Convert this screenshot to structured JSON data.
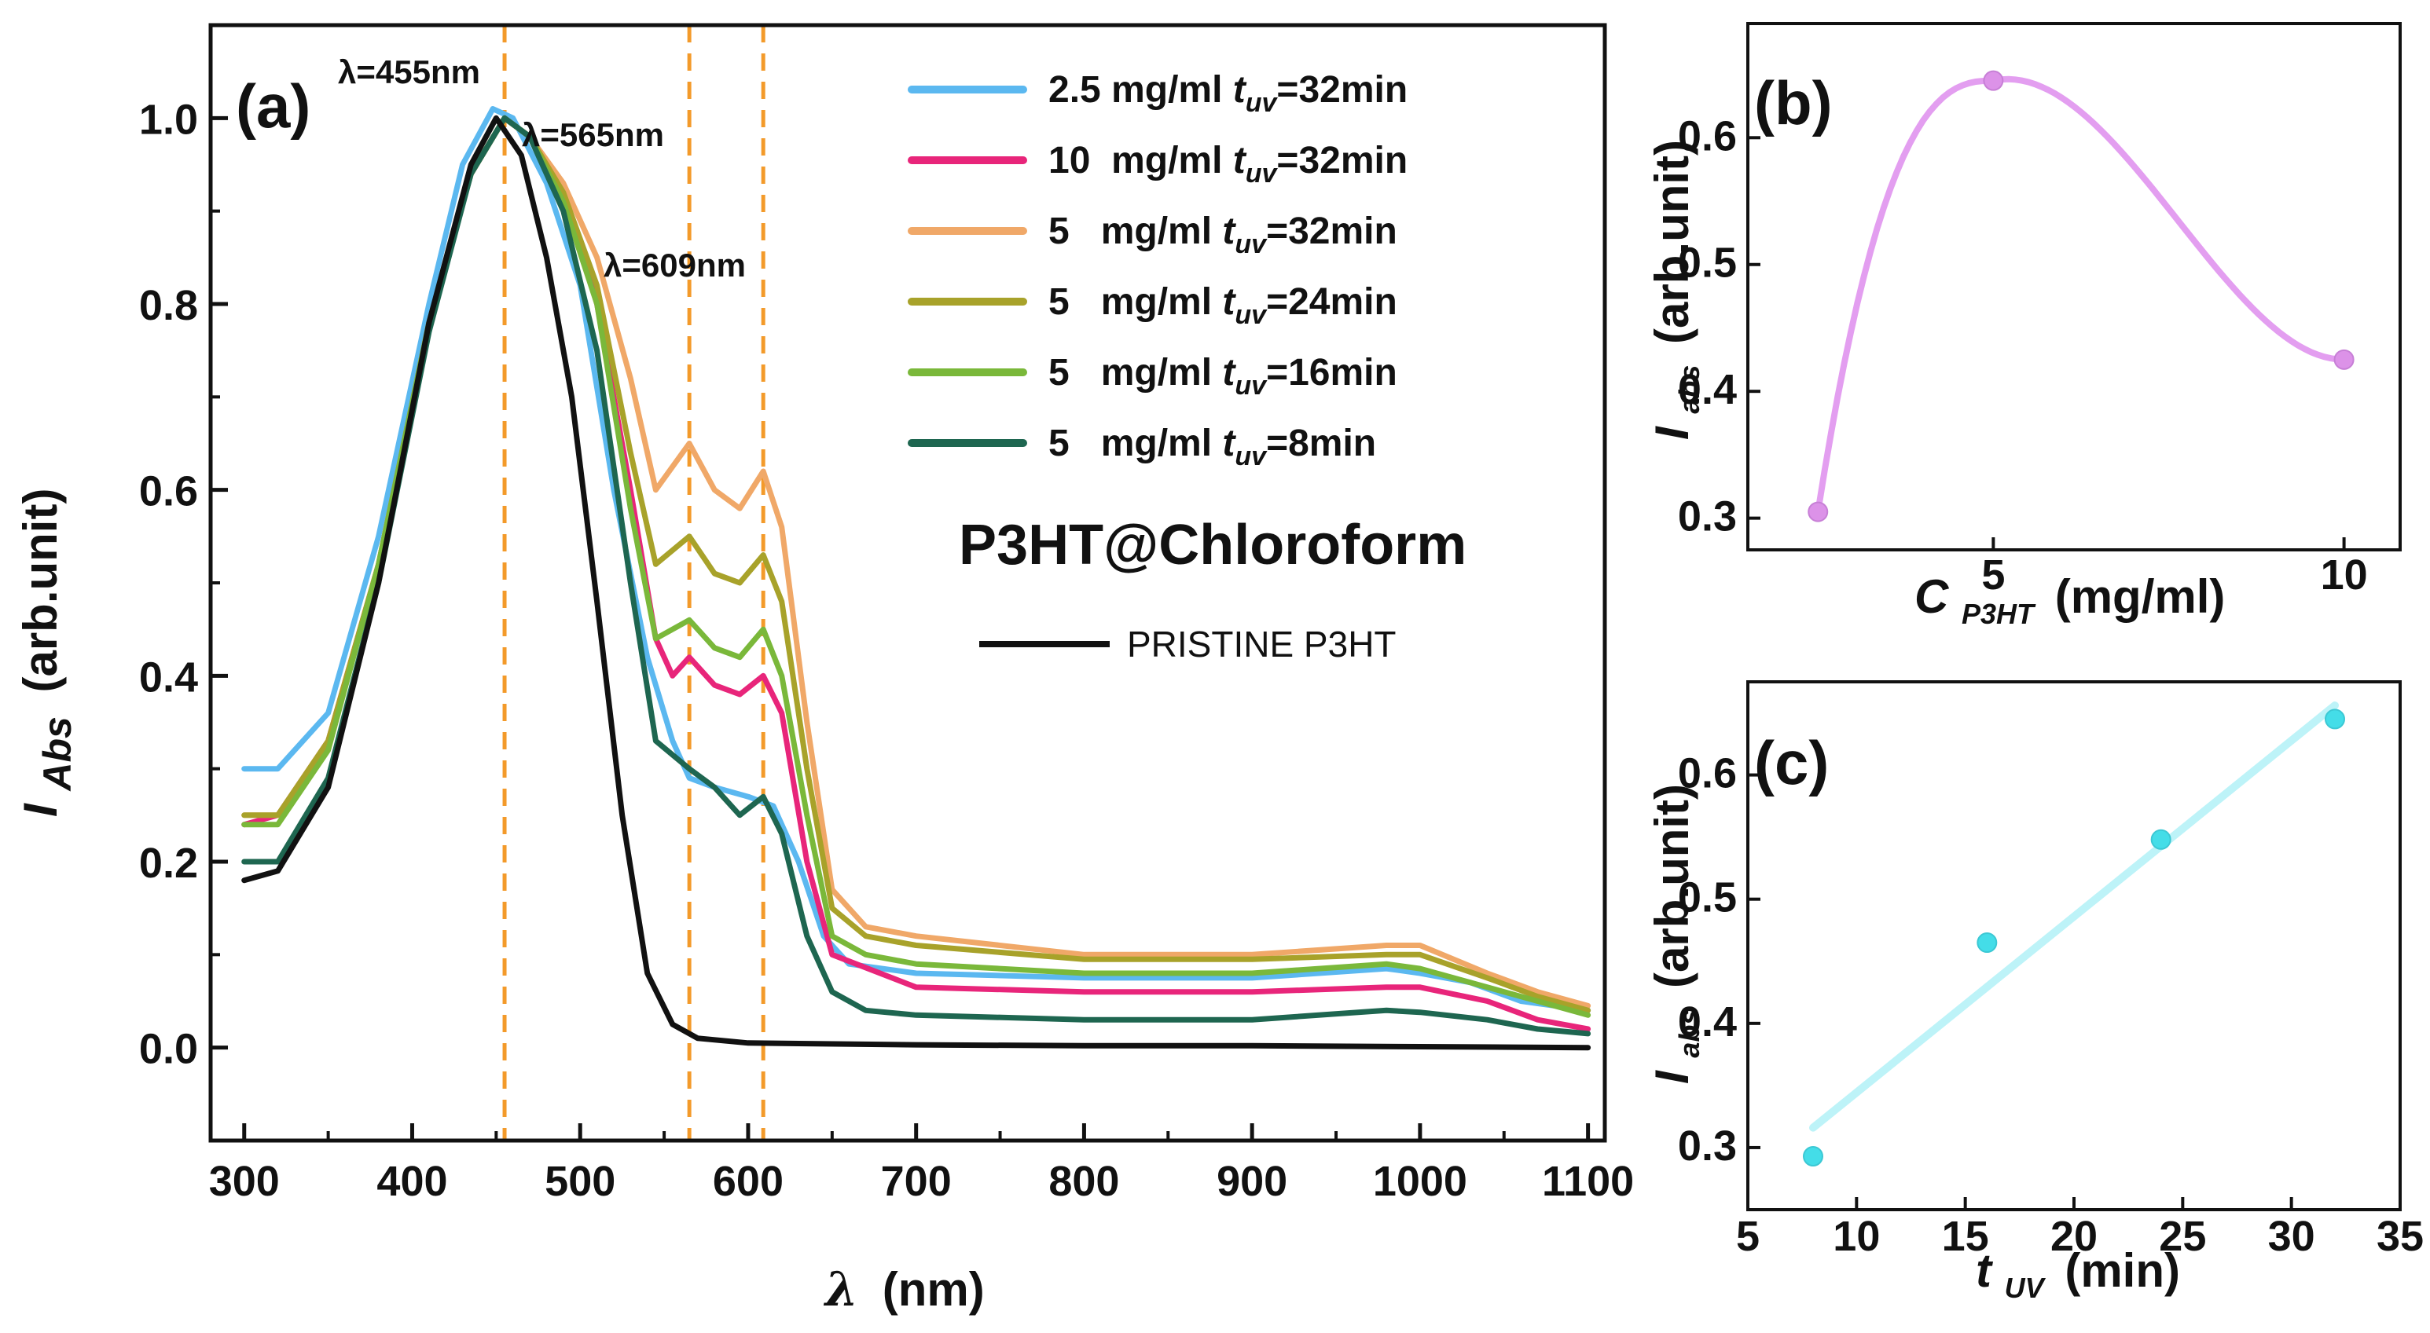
{
  "chart_data": [
    {
      "panel": "(a)",
      "type": "line",
      "title": "P3HT@Chloroform",
      "xlabel_symbol": "λ",
      "xlabel_unit": "(nm)",
      "ylabel_symbol": "I",
      "ylabel_sub": "Abs",
      "ylabel_unit": "(arb.unit)",
      "xlim": [
        280,
        1110
      ],
      "ylim": [
        -0.1,
        1.1
      ],
      "xticks": [
        300,
        400,
        500,
        600,
        700,
        800,
        900,
        1000,
        1100
      ],
      "yticks": [
        "0.0",
        "0.2",
        "0.4",
        "0.6",
        "0.8",
        "1.0"
      ],
      "vlines": [
        455,
        565,
        609
      ],
      "annotations": [
        "λ=455nm",
        "λ=565nm",
        "λ=609nm"
      ],
      "series": [
        {
          "name": "2.5 mg/ml",
          "legend_pre": "2.5 mg/ml ",
          "legend_sub": "uv",
          "legend_post": "=32min",
          "color": "#5bb8f0",
          "points": [
            [
              300,
              0.3
            ],
            [
              320,
              0.3
            ],
            [
              350,
              0.36
            ],
            [
              380,
              0.55
            ],
            [
              410,
              0.8
            ],
            [
              430,
              0.95
            ],
            [
              448,
              1.01
            ],
            [
              460,
              1.0
            ],
            [
              480,
              0.93
            ],
            [
              500,
              0.82
            ],
            [
              520,
              0.6
            ],
            [
              540,
              0.42
            ],
            [
              555,
              0.33
            ],
            [
              565,
              0.29
            ],
            [
              580,
              0.28
            ],
            [
              600,
              0.27
            ],
            [
              615,
              0.26
            ],
            [
              630,
              0.2
            ],
            [
              645,
              0.12
            ],
            [
              660,
              0.09
            ],
            [
              700,
              0.08
            ],
            [
              800,
              0.075
            ],
            [
              900,
              0.075
            ],
            [
              980,
              0.085
            ],
            [
              1000,
              0.08
            ],
            [
              1030,
              0.07
            ],
            [
              1060,
              0.05
            ],
            [
              1100,
              0.04
            ]
          ]
        },
        {
          "name": "10 mg/ml",
          "legend_pre": "10  mg/ml ",
          "legend_sub": "uv",
          "legend_post": "=32min",
          "color": "#e8257a",
          "points": [
            [
              300,
              0.24
            ],
            [
              320,
              0.25
            ],
            [
              350,
              0.33
            ],
            [
              380,
              0.52
            ],
            [
              410,
              0.78
            ],
            [
              435,
              0.94
            ],
            [
              455,
              1.0
            ],
            [
              470,
              0.98
            ],
            [
              490,
              0.92
            ],
            [
              510,
              0.8
            ],
            [
              530,
              0.6
            ],
            [
              545,
              0.44
            ],
            [
              555,
              0.4
            ],
            [
              565,
              0.42
            ],
            [
              580,
              0.39
            ],
            [
              595,
              0.38
            ],
            [
              609,
              0.4
            ],
            [
              620,
              0.36
            ],
            [
              635,
              0.2
            ],
            [
              650,
              0.1
            ],
            [
              700,
              0.065
            ],
            [
              800,
              0.06
            ],
            [
              900,
              0.06
            ],
            [
              980,
              0.065
            ],
            [
              1000,
              0.065
            ],
            [
              1040,
              0.05
            ],
            [
              1070,
              0.03
            ],
            [
              1100,
              0.02
            ]
          ]
        },
        {
          "name": "5 mg/ml 32min",
          "legend_pre": "5   mg/ml ",
          "legend_sub": "uv",
          "legend_post": "=32min",
          "color": "#f0a868",
          "points": [
            [
              300,
              0.25
            ],
            [
              320,
              0.25
            ],
            [
              350,
              0.33
            ],
            [
              380,
              0.52
            ],
            [
              410,
              0.78
            ],
            [
              435,
              0.94
            ],
            [
              455,
              1.0
            ],
            [
              470,
              0.98
            ],
            [
              490,
              0.93
            ],
            [
              510,
              0.85
            ],
            [
              530,
              0.72
            ],
            [
              545,
              0.6
            ],
            [
              565,
              0.65
            ],
            [
              580,
              0.6
            ],
            [
              595,
              0.58
            ],
            [
              609,
              0.62
            ],
            [
              620,
              0.56
            ],
            [
              635,
              0.35
            ],
            [
              650,
              0.17
            ],
            [
              670,
              0.13
            ],
            [
              700,
              0.12
            ],
            [
              800,
              0.1
            ],
            [
              900,
              0.1
            ],
            [
              980,
              0.11
            ],
            [
              1000,
              0.11
            ],
            [
              1040,
              0.08
            ],
            [
              1070,
              0.06
            ],
            [
              1100,
              0.045
            ]
          ]
        },
        {
          "name": "5 mg/ml 24min",
          "legend_pre": "5   mg/ml ",
          "legend_sub": "uv",
          "legend_post": "=24min",
          "color": "#a8a22a",
          "points": [
            [
              300,
              0.25
            ],
            [
              320,
              0.25
            ],
            [
              350,
              0.33
            ],
            [
              380,
              0.52
            ],
            [
              410,
              0.78
            ],
            [
              435,
              0.94
            ],
            [
              455,
              1.0
            ],
            [
              470,
              0.98
            ],
            [
              490,
              0.92
            ],
            [
              510,
              0.82
            ],
            [
              530,
              0.64
            ],
            [
              545,
              0.52
            ],
            [
              565,
              0.55
            ],
            [
              580,
              0.51
            ],
            [
              595,
              0.5
            ],
            [
              609,
              0.53
            ],
            [
              620,
              0.48
            ],
            [
              635,
              0.3
            ],
            [
              650,
              0.15
            ],
            [
              670,
              0.12
            ],
            [
              700,
              0.11
            ],
            [
              800,
              0.095
            ],
            [
              900,
              0.095
            ],
            [
              980,
              0.1
            ],
            [
              1000,
              0.1
            ],
            [
              1040,
              0.075
            ],
            [
              1070,
              0.055
            ],
            [
              1100,
              0.04
            ]
          ]
        },
        {
          "name": "5 mg/ml 16min",
          "legend_pre": "5   mg/ml ",
          "legend_sub": "uv",
          "legend_post": "=16min",
          "color": "#7ab83a",
          "points": [
            [
              300,
              0.24
            ],
            [
              320,
              0.24
            ],
            [
              350,
              0.32
            ],
            [
              380,
              0.52
            ],
            [
              410,
              0.78
            ],
            [
              435,
              0.94
            ],
            [
              455,
              1.0
            ],
            [
              470,
              0.98
            ],
            [
              490,
              0.91
            ],
            [
              510,
              0.8
            ],
            [
              530,
              0.58
            ],
            [
              545,
              0.44
            ],
            [
              565,
              0.46
            ],
            [
              580,
              0.43
            ],
            [
              595,
              0.42
            ],
            [
              609,
              0.45
            ],
            [
              620,
              0.4
            ],
            [
              635,
              0.25
            ],
            [
              650,
              0.12
            ],
            [
              670,
              0.1
            ],
            [
              700,
              0.09
            ],
            [
              800,
              0.08
            ],
            [
              900,
              0.08
            ],
            [
              980,
              0.09
            ],
            [
              1000,
              0.085
            ],
            [
              1040,
              0.065
            ],
            [
              1070,
              0.05
            ],
            [
              1100,
              0.035
            ]
          ]
        },
        {
          "name": "5 mg/ml 8min",
          "legend_pre": "5   mg/ml ",
          "legend_sub": "uv",
          "legend_post": "=8min",
          "color": "#1e6650",
          "points": [
            [
              300,
              0.2
            ],
            [
              320,
              0.2
            ],
            [
              350,
              0.29
            ],
            [
              380,
              0.5
            ],
            [
              410,
              0.77
            ],
            [
              435,
              0.94
            ],
            [
              455,
              1.0
            ],
            [
              470,
              0.98
            ],
            [
              490,
              0.9
            ],
            [
              510,
              0.75
            ],
            [
              530,
              0.5
            ],
            [
              545,
              0.33
            ],
            [
              565,
              0.3
            ],
            [
              580,
              0.28
            ],
            [
              595,
              0.25
            ],
            [
              609,
              0.27
            ],
            [
              620,
              0.23
            ],
            [
              635,
              0.12
            ],
            [
              650,
              0.06
            ],
            [
              670,
              0.04
            ],
            [
              700,
              0.035
            ],
            [
              800,
              0.03
            ],
            [
              900,
              0.03
            ],
            [
              980,
              0.04
            ],
            [
              1000,
              0.038
            ],
            [
              1040,
              0.03
            ],
            [
              1070,
              0.02
            ],
            [
              1100,
              0.015
            ]
          ]
        },
        {
          "name": "PRISTINE P3HT",
          "legend_pre": "PRISTINE P3HT",
          "legend_sub": "",
          "legend_post": "",
          "color": "#111111",
          "points": [
            [
              300,
              0.18
            ],
            [
              320,
              0.19
            ],
            [
              350,
              0.28
            ],
            [
              380,
              0.5
            ],
            [
              410,
              0.78
            ],
            [
              435,
              0.95
            ],
            [
              450,
              1.0
            ],
            [
              465,
              0.96
            ],
            [
              480,
              0.85
            ],
            [
              495,
              0.7
            ],
            [
              510,
              0.48
            ],
            [
              525,
              0.25
            ],
            [
              540,
              0.08
            ],
            [
              555,
              0.025
            ],
            [
              570,
              0.01
            ],
            [
              600,
              0.005
            ],
            [
              700,
              0.003
            ],
            [
              800,
              0.002
            ],
            [
              900,
              0.002
            ],
            [
              1000,
              0.001
            ],
            [
              1100,
              0.0
            ]
          ]
        }
      ]
    },
    {
      "panel": "(b)",
      "type": "line",
      "xlabel_symbol": "C",
      "xlabel_sub": "P3HT",
      "xlabel_unit": "(mg/ml)",
      "ylabel_symbol": "I",
      "ylabel_sub": "abs",
      "ylabel_unit": "(arb.unit)",
      "xlim": [
        1.5,
        10.8
      ],
      "ylim": [
        0.275,
        0.69
      ],
      "xticks": [
        "5",
        "10"
      ],
      "yticks": [
        "0.3",
        "0.4",
        "0.5",
        "0.6"
      ],
      "x": [
        2.5,
        5,
        10
      ],
      "y": [
        0.305,
        0.645,
        0.425
      ],
      "color": "#e39ef0"
    },
    {
      "panel": "(c)",
      "type": "scatter",
      "xlabel_symbol": "t",
      "xlabel_sub": "UV",
      "xlabel_unit": "(min)",
      "ylabel_symbol": "I",
      "ylabel_sub": "abs",
      "ylabel_unit": "(arb.unit)",
      "xlim": [
        5,
        35
      ],
      "ylim": [
        0.25,
        0.675
      ],
      "xticks": [
        "5",
        "10",
        "15",
        "20",
        "25",
        "30",
        "35"
      ],
      "yticks": [
        "0.3",
        "0.4",
        "0.5",
        "0.6"
      ],
      "x": [
        8,
        16,
        24,
        32
      ],
      "y": [
        0.293,
        0.465,
        0.548,
        0.645
      ],
      "fit": [
        [
          8,
          0.316
        ],
        [
          32,
          0.656
        ]
      ],
      "color": "#44dde8",
      "fit_color": "#bdf3f8"
    }
  ]
}
